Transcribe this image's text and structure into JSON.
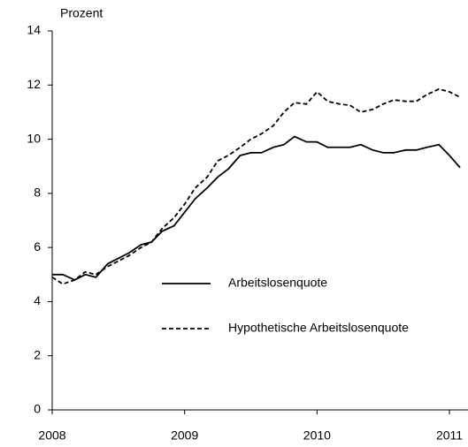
{
  "chart_data": {
    "type": "line",
    "ylabel": "Prozent",
    "x": [
      2008,
      2008.08,
      2008.17,
      2008.25,
      2008.33,
      2008.42,
      2008.5,
      2008.58,
      2008.67,
      2008.75,
      2008.83,
      2008.92,
      2009,
      2009.08,
      2009.17,
      2009.25,
      2009.33,
      2009.42,
      2009.5,
      2009.58,
      2009.67,
      2009.75,
      2009.83,
      2009.92,
      2010,
      2010.08,
      2010.17,
      2010.25,
      2010.33,
      2010.42,
      2010.5,
      2010.58,
      2010.67,
      2010.75,
      2010.83,
      2010.92,
      2011,
      2011.08
    ],
    "series": [
      {
        "name": "Arbeitslosenquote",
        "color": "#000000",
        "style": "solid",
        "values": [
          5.0,
          5.0,
          4.8,
          5.0,
          4.9,
          5.4,
          5.6,
          5.8,
          6.1,
          6.2,
          6.6,
          6.8,
          7.3,
          7.8,
          8.2,
          8.6,
          8.9,
          9.4,
          9.5,
          9.5,
          9.7,
          9.8,
          10.1,
          9.9,
          9.9,
          9.7,
          9.7,
          9.7,
          9.8,
          9.6,
          9.5,
          9.5,
          9.6,
          9.6,
          9.7,
          9.8,
          9.4,
          8.95
        ]
      },
      {
        "name": "Hypothetische Arbeitslosenquote",
        "color": "#000000",
        "style": "dashed",
        "values": [
          4.9,
          4.65,
          4.8,
          5.1,
          5.0,
          5.3,
          5.5,
          5.7,
          6.0,
          6.2,
          6.7,
          7.1,
          7.6,
          8.2,
          8.6,
          9.2,
          9.4,
          9.7,
          10.0,
          10.2,
          10.5,
          11.0,
          11.35,
          11.3,
          11.75,
          11.4,
          11.3,
          11.25,
          11.0,
          11.1,
          11.3,
          11.45,
          11.4,
          11.4,
          11.65,
          11.85,
          11.75,
          11.55
        ]
      }
    ],
    "xlim": [
      2008,
      2011.14
    ],
    "xticks": [
      2008,
      2009,
      2010,
      2011
    ],
    "ylim": [
      0,
      14
    ],
    "yticks": [
      0,
      2,
      4,
      6,
      8,
      10,
      12,
      14
    ]
  }
}
